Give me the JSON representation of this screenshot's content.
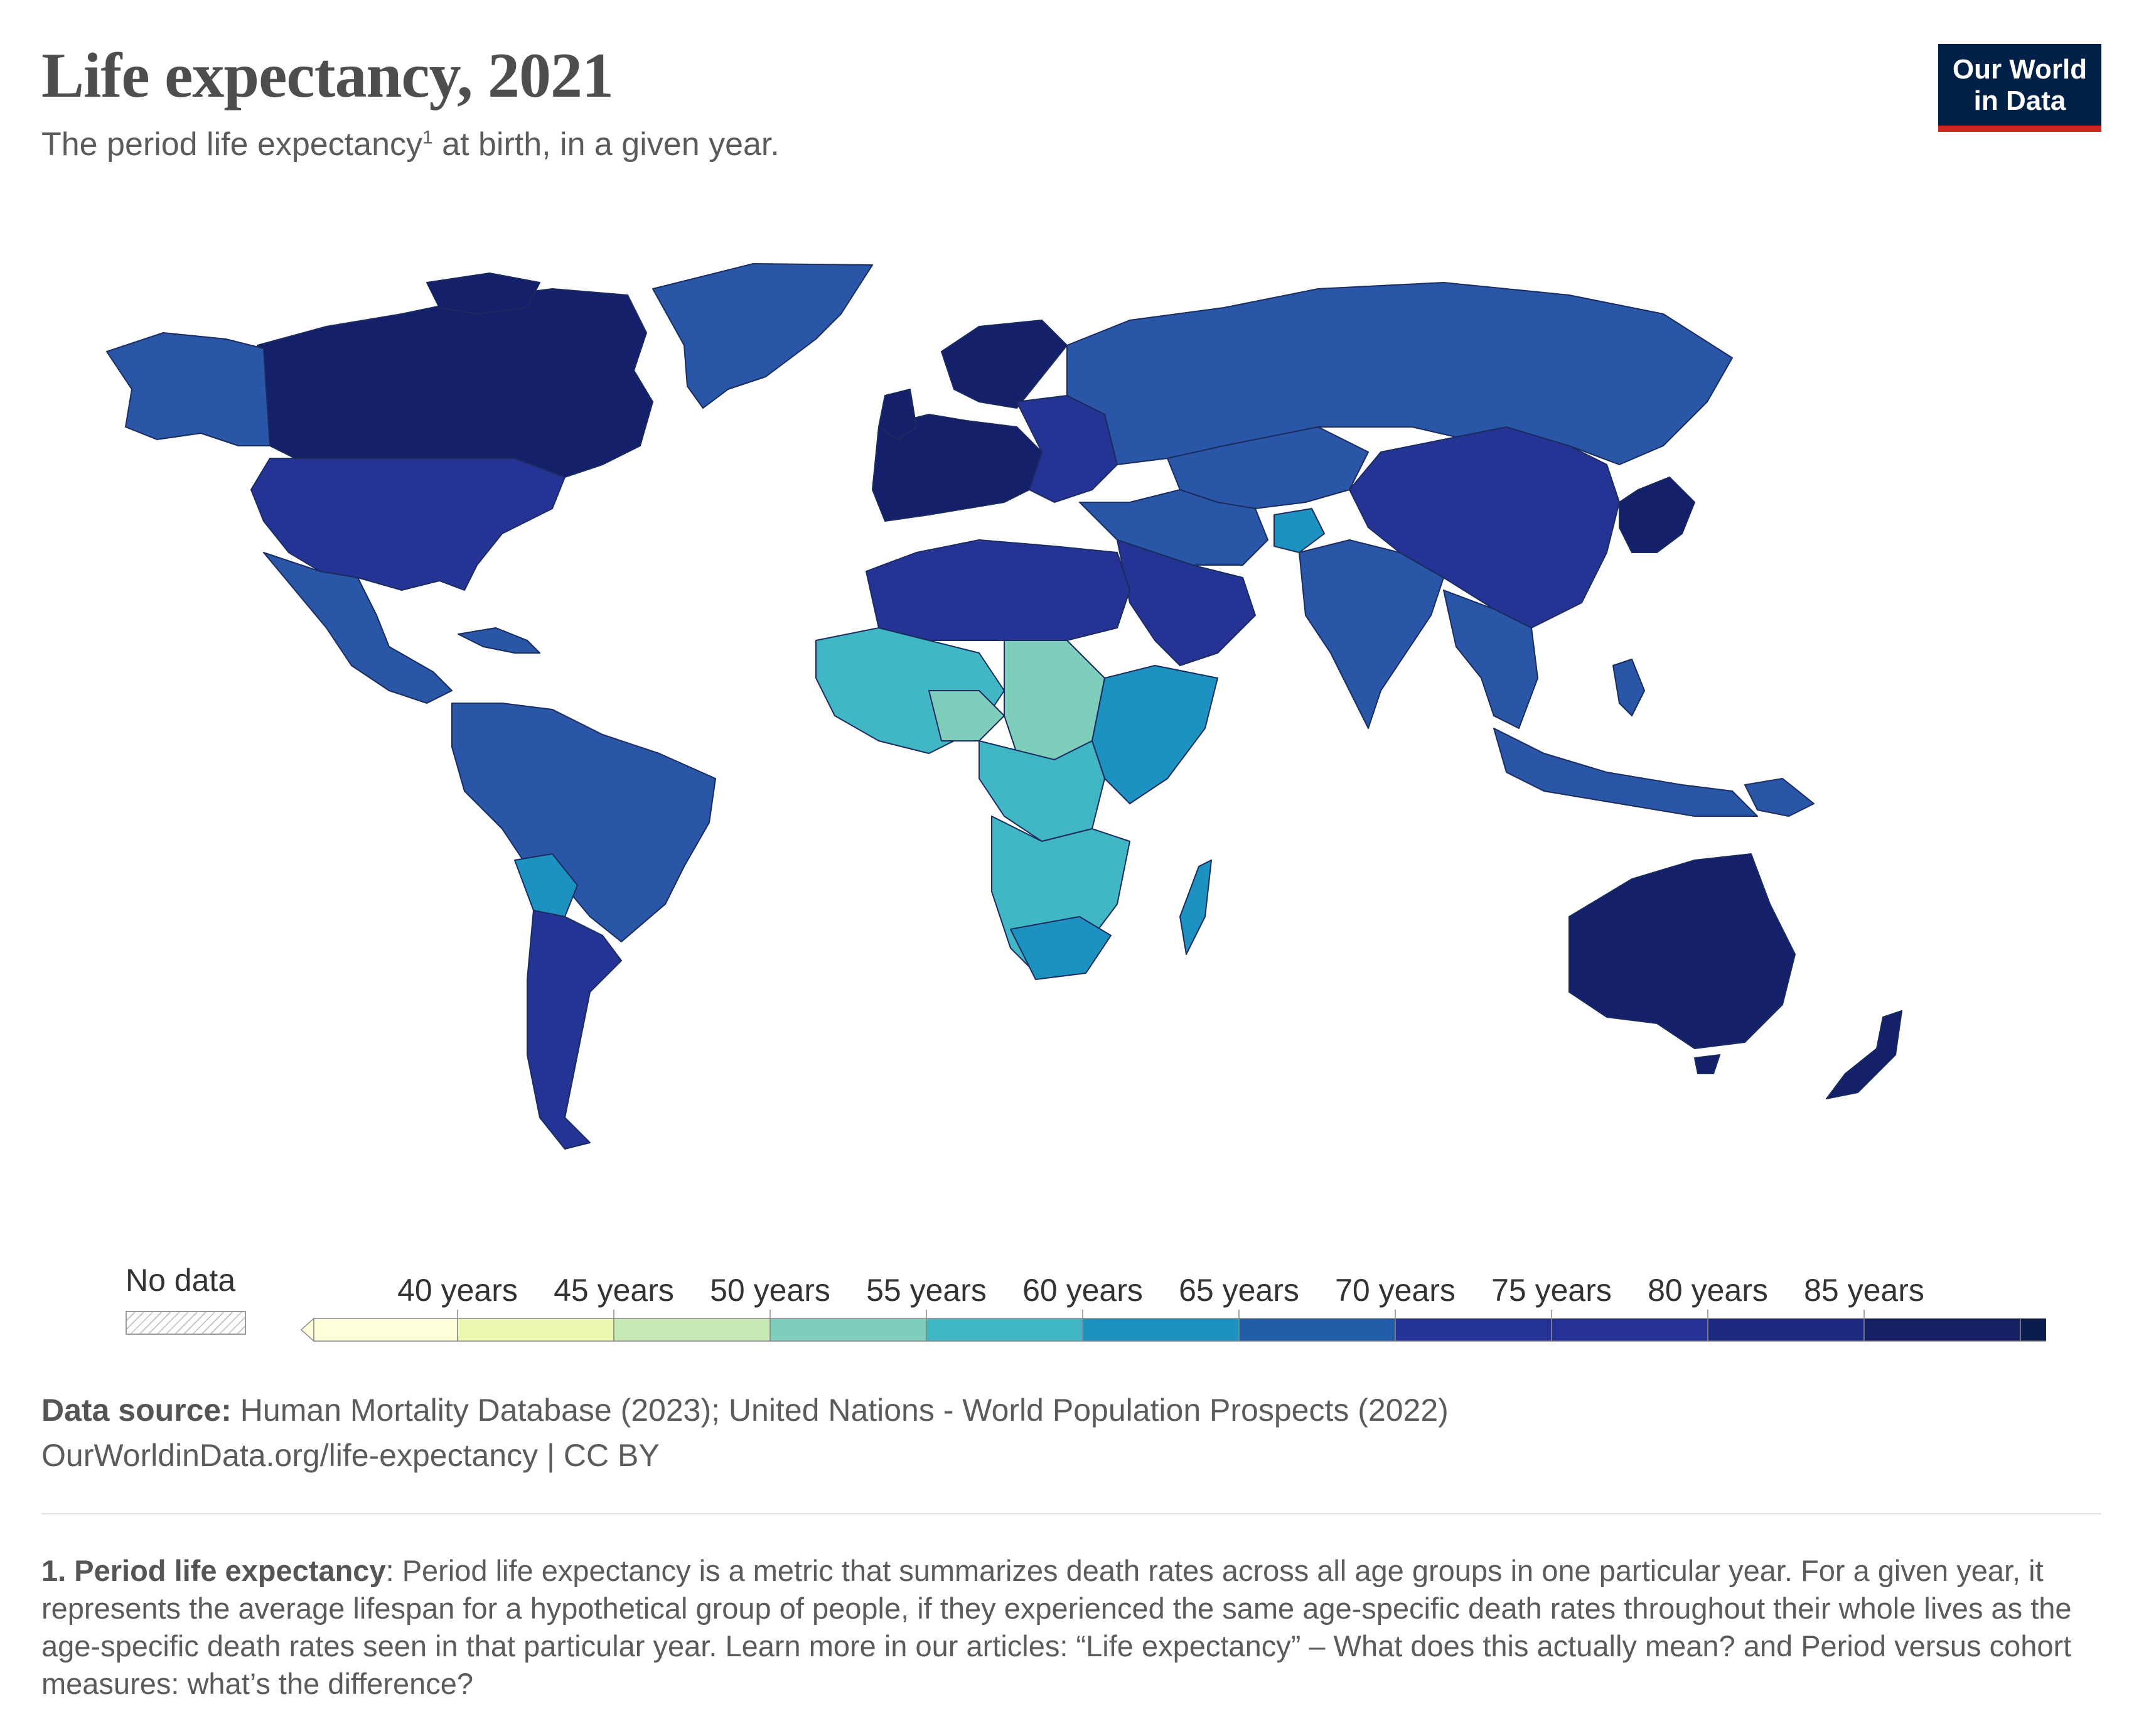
{
  "title": "Life expectancy, 2021",
  "subtitle": "The period life expectancy",
  "subtitle_sup": "1",
  "subtitle_rest": " at birth, in a given year.",
  "logo": {
    "line1": "Our World",
    "line2": "in Data"
  },
  "legend": {
    "no_data_label": "No data",
    "ticks": [
      "40 years",
      "45 years",
      "50 years",
      "55 years",
      "60 years",
      "65 years",
      "70 years",
      "75 years",
      "80 years",
      "85 years"
    ],
    "colors": [
      "#ffffd9",
      "#edf8b1",
      "#c7e9b4",
      "#7fcdbb",
      "#41b6c4",
      "#1d91c0",
      "#225ea8",
      "#253494",
      "#263196",
      "#1d2a7d",
      "#142063",
      "#0b1d4f"
    ]
  },
  "source": {
    "label": "Data source:",
    "text": " Human Mortality Database (2023); United Nations - World Population Prospects (2022)",
    "url_line": "OurWorldinData.org/life-expectancy | CC BY"
  },
  "footnote": {
    "label": "1. Period life expectancy",
    "text": ": Period life expectancy is a metric that summarizes death rates across all age groups in one particular year. For a given year, it represents the average lifespan for a hypothetical group of people, if they experienced the same age-specific death rates throughout their whole lives as the age-specific death rates seen in that particular year. Learn more in our articles: “Life expectancy” – What does this actually mean? and Period versus cohort measures: what’s the difference?"
  },
  "map_colors": {
    "dark": "#14206a",
    "high": "#253494",
    "mid": "#2a56a8",
    "midlow": "#1d91c0",
    "low": "#41b6c4",
    "lower": "#7fcdbb"
  }
}
